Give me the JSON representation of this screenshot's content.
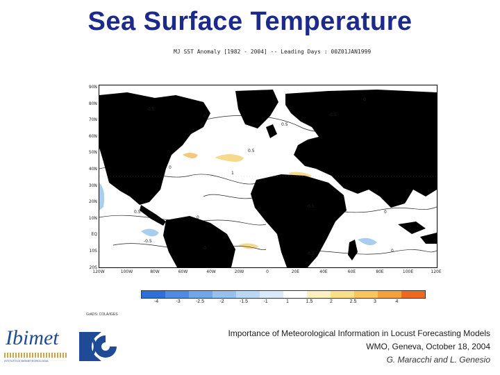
{
  "slide": {
    "title": "Sea Surface Temperature"
  },
  "map": {
    "subtitle": "MJ SST Anomaly [1982 - 2004] -- Leading Days : 00Z01JAN1999",
    "lat_labels": [
      "90N",
      "80N",
      "70N",
      "60N",
      "50N",
      "40N",
      "30N",
      "20N",
      "10N",
      "EQ",
      "10S",
      "20S"
    ],
    "lon_labels": [
      "120W",
      "100W",
      "80W",
      "60W",
      "40W",
      "20W",
      "0",
      "20E",
      "40E",
      "60E",
      "80E",
      "100E",
      "120E"
    ],
    "contour_labels": [
      "0.5",
      "0",
      "0.5",
      "-0.5",
      "0",
      "1",
      "0.5",
      "0",
      "0.5",
      "0",
      "-0.5",
      "0",
      "0.5",
      "0",
      "0.5",
      "0"
    ],
    "colorbar": {
      "labels": [
        "-4",
        "-3",
        "-2.5",
        "-2",
        "-1.5",
        "-1",
        "1",
        "1.5",
        "2",
        "2.5",
        "3",
        "4"
      ],
      "colors": [
        "#2f6fd8",
        "#4f8be0",
        "#72a6e8",
        "#97c0ef",
        "#bad7f5",
        "#dbeafa",
        "#ffffff",
        "#fdf0c0",
        "#fbe08a",
        "#f8c65a",
        "#f4a33a",
        "#ee6a1e"
      ]
    },
    "source_note": "GrADS: COLA/IGES",
    "colors": {
      "land": "#000000",
      "warm_anomaly": "#f7d98e",
      "cool_anomaly": "#a9cdee"
    }
  },
  "logos": {
    "ibimet_wordmark": "Ibimet",
    "ibimet_caption": "ISTITUTO DI BIOMETEOROLOGIA",
    "cnr_icon": "cnr-logo-icon"
  },
  "footer": {
    "line1": "Importance of Meteorological Information in Locust Forecasting Models",
    "line2": "WMO, Geneva, October 18, 2004",
    "line3": "G. Maracchi and L. Genesio"
  },
  "theme": {
    "title_color": "#1c2a8c",
    "logo_color": "#1f4a96"
  }
}
